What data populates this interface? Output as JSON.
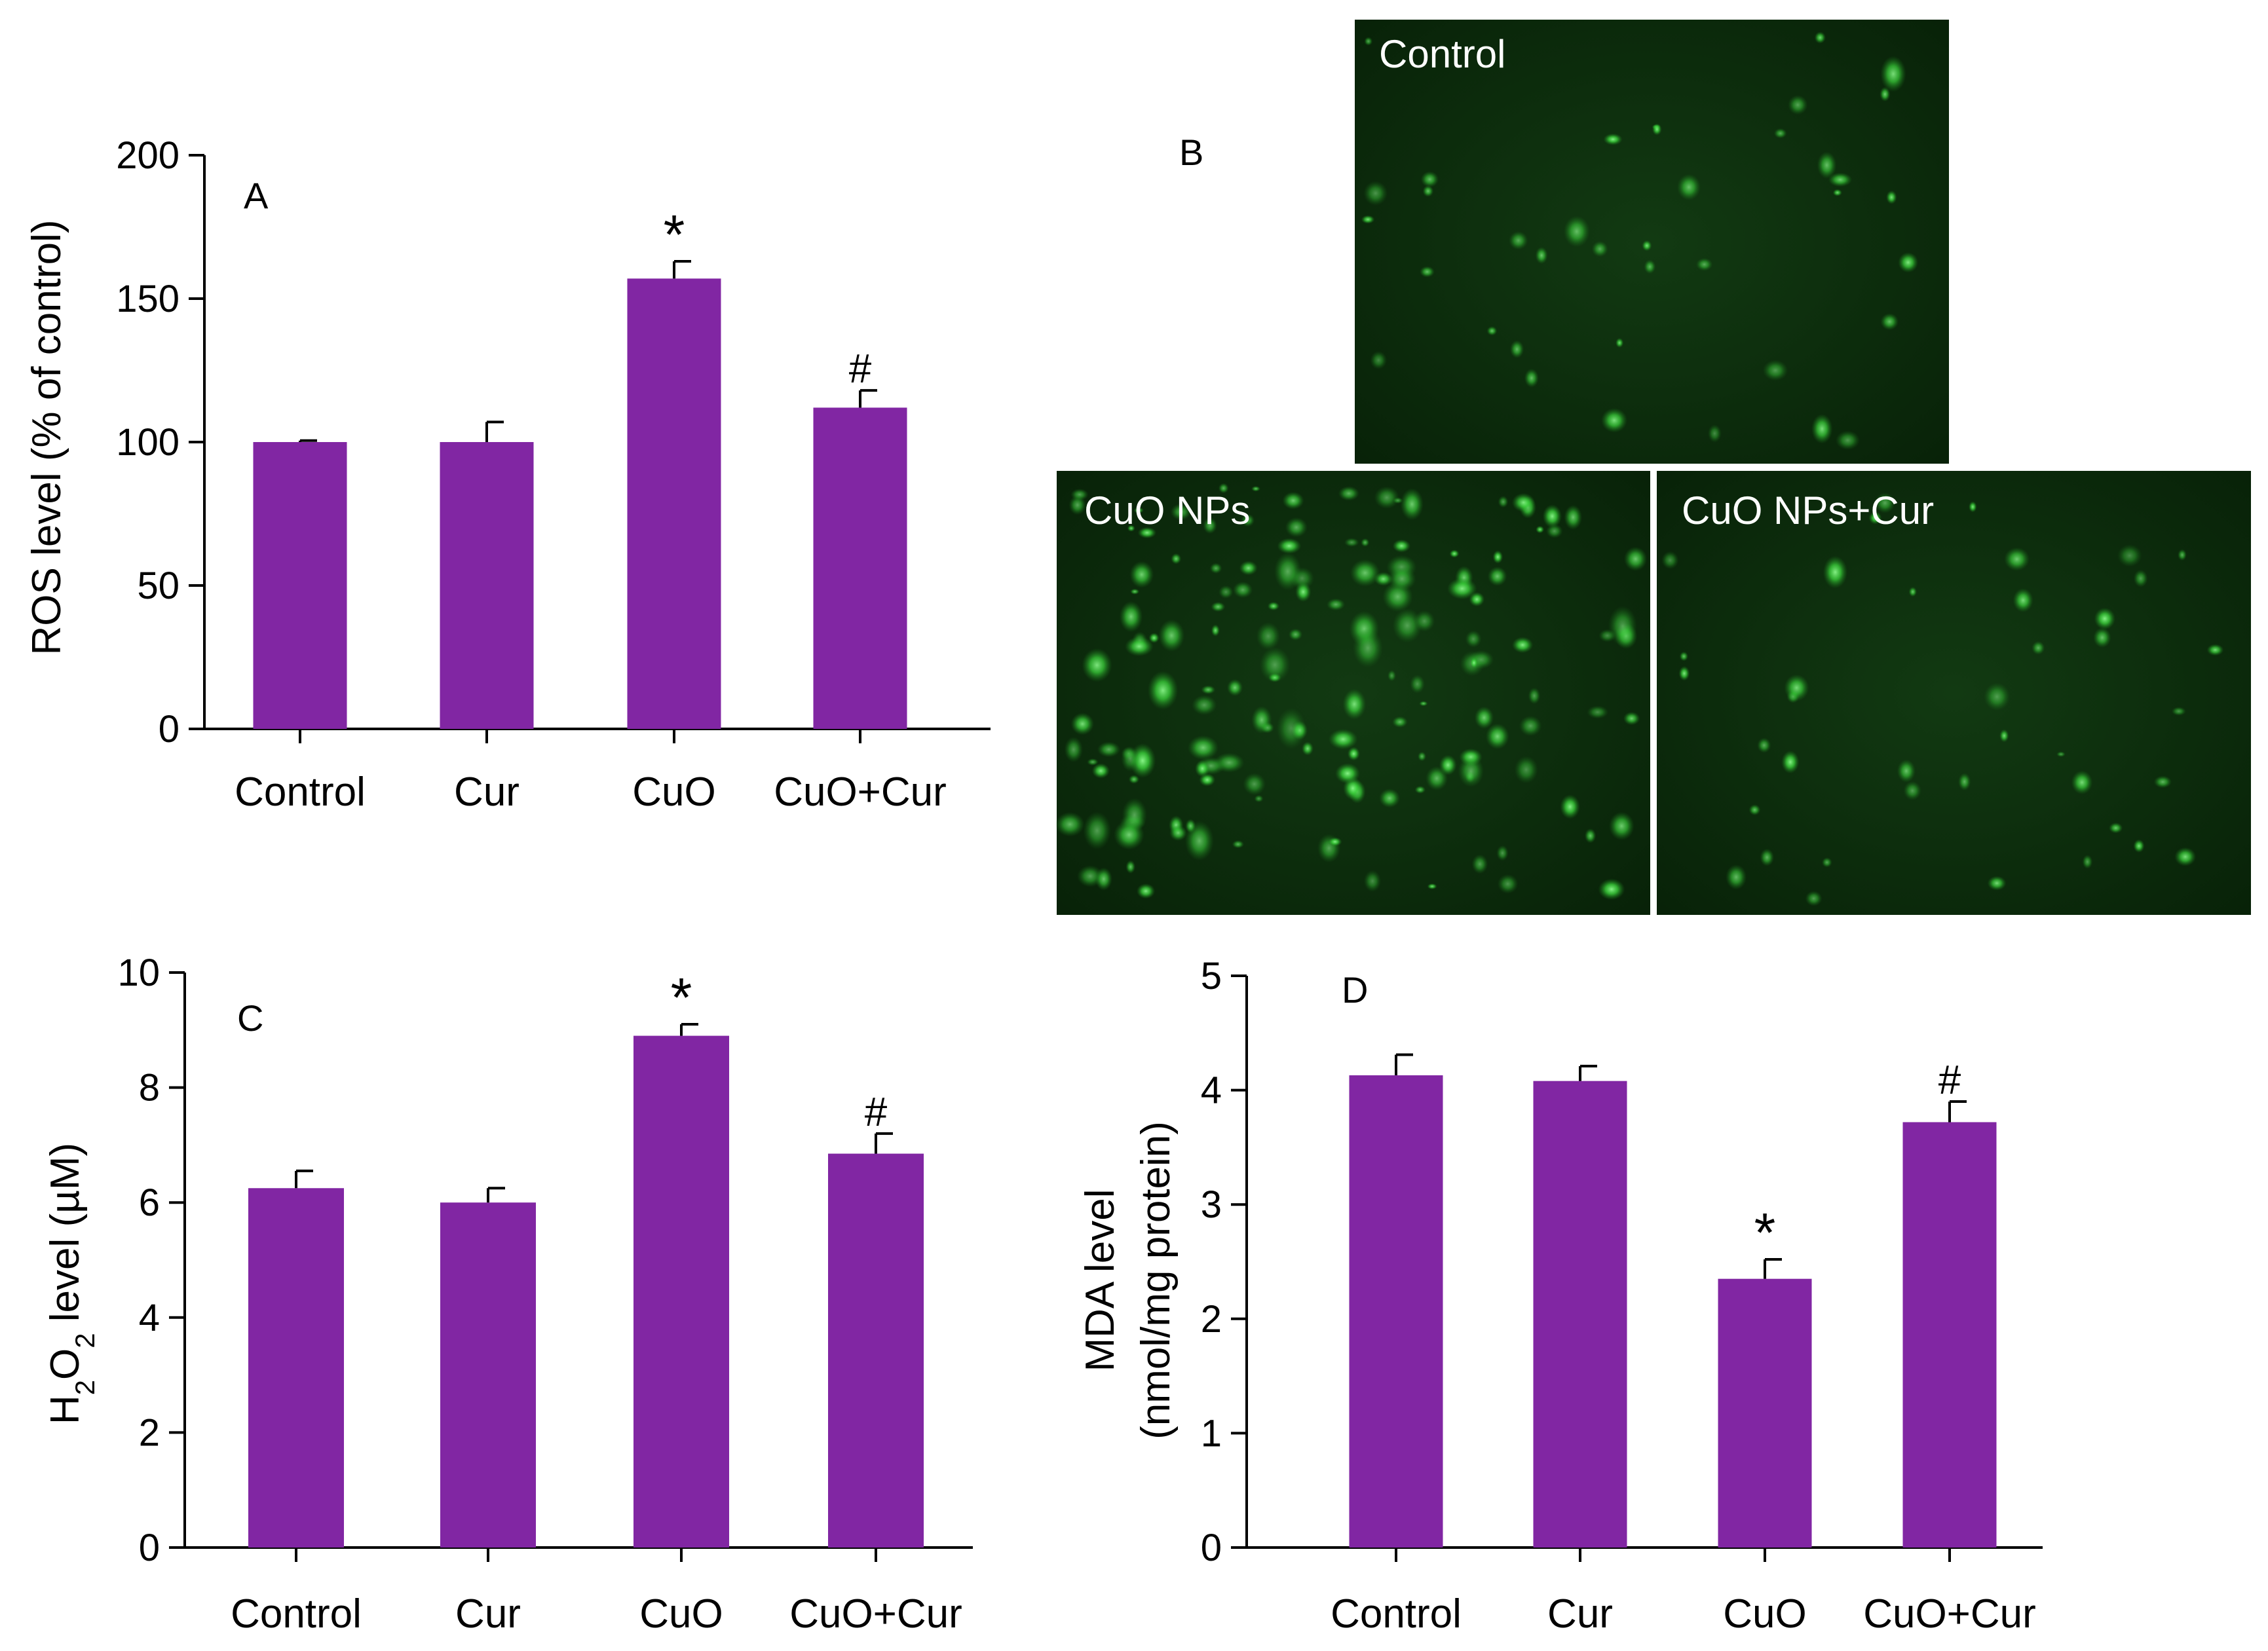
{
  "colors": {
    "bar": "#8126a3",
    "axis": "#000000",
    "micro_bg": "#0b2a0b",
    "micro_cell": "#3ad13a",
    "micro_label": "#ffffff"
  },
  "chart_data": [
    {
      "panel": "A",
      "type": "bar",
      "categories": [
        "Control",
        "Cur",
        "CuO",
        "CuO+Cur"
      ],
      "values": [
        100,
        100,
        157,
        112
      ],
      "errors": [
        0.5,
        7,
        6,
        6
      ],
      "markers": [
        "",
        "",
        "*",
        "#"
      ],
      "title": "",
      "xlabel": "",
      "ylabel": "ROS level (% of control)",
      "ylim": [
        0,
        200
      ],
      "yticks": [
        "0",
        "50",
        "100",
        "150",
        "200"
      ]
    },
    {
      "panel": "C",
      "type": "bar",
      "categories": [
        "Control",
        "Cur",
        "CuO",
        "CuO+Cur"
      ],
      "values": [
        6.25,
        6.0,
        8.9,
        6.85
      ],
      "errors": [
        0.3,
        0.25,
        0.2,
        0.35
      ],
      "markers": [
        "",
        "",
        "*",
        "#"
      ],
      "title": "",
      "xlabel": "",
      "ylabel_main": "H",
      "ylabel_sub1": "2",
      "ylabel_mid": "O",
      "ylabel_sub2": "2",
      "ylabel_end": " level (µM)",
      "ylim": [
        0,
        10
      ],
      "yticks": [
        "0",
        "2",
        "4",
        "6",
        "8",
        "10"
      ]
    },
    {
      "panel": "D",
      "type": "bar",
      "categories": [
        "Control",
        "Cur",
        "CuO",
        "CuO+Cur"
      ],
      "values": [
        4.13,
        4.08,
        2.35,
        3.72
      ],
      "errors": [
        0.18,
        0.13,
        0.17,
        0.18
      ],
      "markers": [
        "",
        "",
        "*",
        "#"
      ],
      "title": "",
      "xlabel": "",
      "ylabel_line1": "MDA level",
      "ylabel_line2": "(nmol/mg protein)",
      "ylim": [
        0,
        5
      ],
      "yticks": [
        "0",
        "1",
        "2",
        "3",
        "4",
        "5"
      ]
    }
  ],
  "panel_b": {
    "letter": "B",
    "images": [
      {
        "label": "Control",
        "density": "low"
      },
      {
        "label": "CuO NPs",
        "density": "high"
      },
      {
        "label": "CuO NPs+Cur",
        "density": "low"
      }
    ]
  }
}
